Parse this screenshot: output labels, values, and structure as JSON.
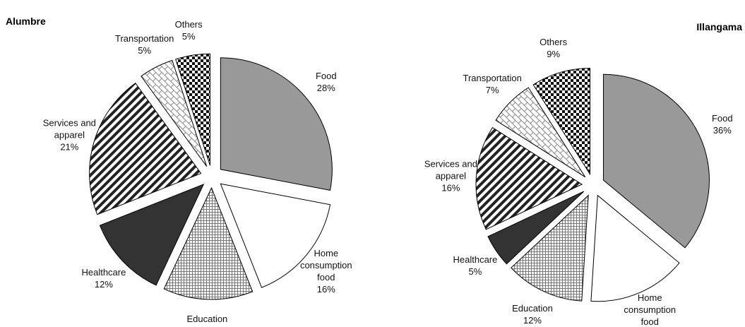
{
  "chart_data": [
    {
      "type": "pie",
      "title": "Alumbre",
      "categories": [
        "Food",
        "Home consumption food",
        "Education",
        "Healthcare",
        "Services and apparel",
        "Transportation",
        "Others"
      ],
      "values": [
        28,
        16,
        13,
        12,
        21,
        5,
        5
      ],
      "value_labels": [
        "28%",
        "16%",
        "13%",
        "12%",
        "21%",
        "5%",
        "5%"
      ]
    },
    {
      "type": "pie",
      "title": "Illangama",
      "categories": [
        "Food",
        "Home consumption food",
        "Education",
        "Healthcare",
        "Services and apparel",
        "Transportation",
        "Others"
      ],
      "values": [
        36,
        15,
        12,
        5,
        16,
        7,
        9
      ],
      "value_labels": [
        "36%",
        "15%",
        "12%",
        "5%",
        "16%",
        "7%",
        "9%"
      ]
    }
  ]
}
